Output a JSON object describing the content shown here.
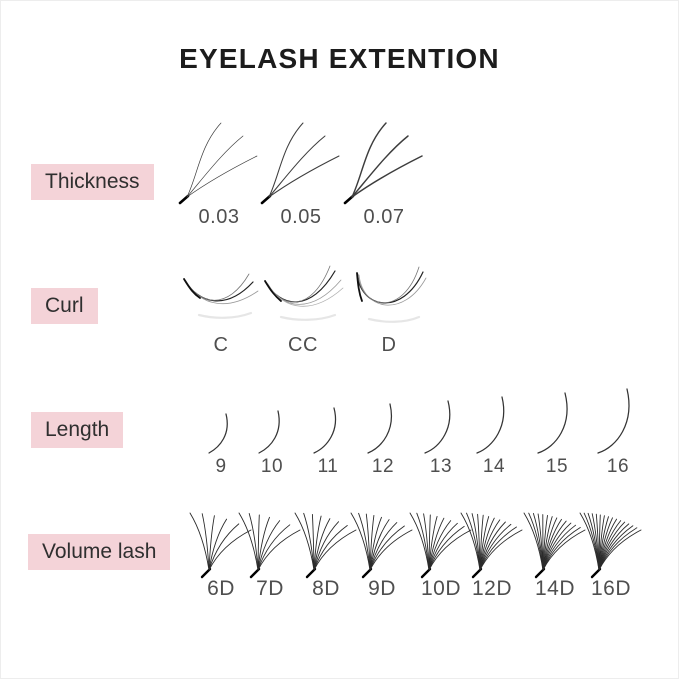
{
  "title": "EYELASH EXTENTION",
  "colors": {
    "accent": "#f4d3d8",
    "title": "#1c1c1c",
    "tag_text": "#2f2f2f",
    "caption": "#4f4f4f",
    "lash": "#333333"
  },
  "rows": {
    "thickness": {
      "label": "Thickness",
      "items": [
        {
          "value": "0.03"
        },
        {
          "value": "0.05"
        },
        {
          "value": "0.07"
        }
      ]
    },
    "curl": {
      "label": "Curl",
      "items": [
        {
          "value": "C"
        },
        {
          "value": "CC"
        },
        {
          "value": "D"
        }
      ]
    },
    "length": {
      "label": "Length",
      "items": [
        {
          "value": "9"
        },
        {
          "value": "10"
        },
        {
          "value": "11"
        },
        {
          "value": "12"
        },
        {
          "value": "13"
        },
        {
          "value": "14"
        },
        {
          "value": "15"
        },
        {
          "value": "16"
        }
      ]
    },
    "volume": {
      "label": "Volume lash",
      "items": [
        {
          "value": "6D"
        },
        {
          "value": "7D"
        },
        {
          "value": "8D"
        },
        {
          "value": "9D"
        },
        {
          "value": "10D"
        },
        {
          "value": "12D"
        },
        {
          "value": "14D"
        },
        {
          "value": "16D"
        }
      ]
    }
  }
}
